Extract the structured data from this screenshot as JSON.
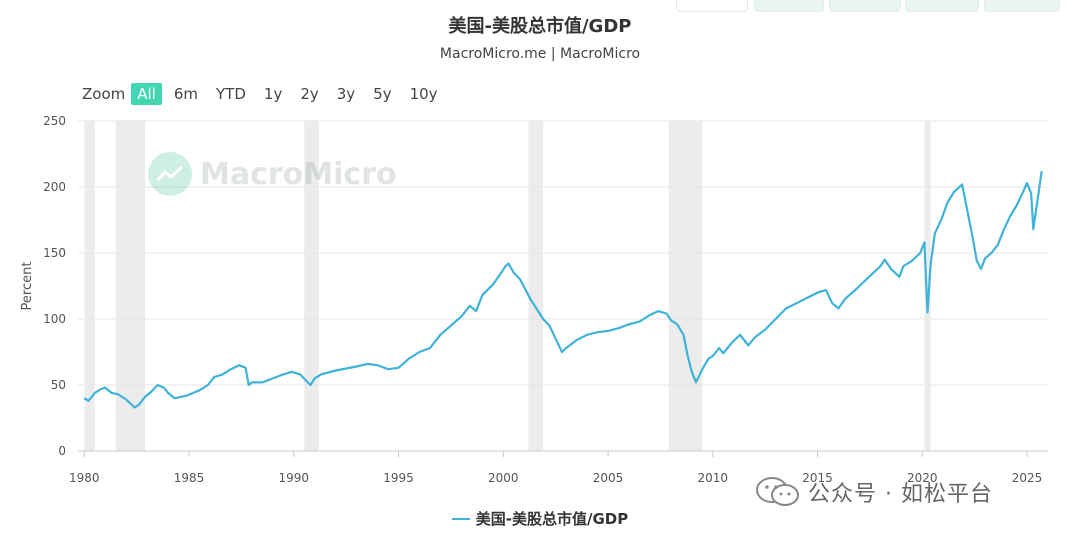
{
  "title": "美国-美股总市值/GDP",
  "subtitle": "MacroMicro.me | MacroMicro",
  "range_selector": {
    "zoom_label": "Zoom",
    "buttons": [
      "All",
      "6m",
      "YTD",
      "1y",
      "2y",
      "3y",
      "5y",
      "10y"
    ],
    "active": "All"
  },
  "watermark": "MacroMicro",
  "wechat_label": "公众号 · 如松平台",
  "colors": {
    "series": "#3fb2d8",
    "recession": "#ececec",
    "accent": "#42d6b2",
    "grid": "#e6e6e6"
  },
  "chart_data": {
    "type": "line",
    "title": "美国-美股总市值/GDP",
    "subtitle": "MacroMicro.me | MacroMicro",
    "ylabel": "Percent",
    "xlabel": "",
    "xlim": [
      1979.7,
      2026.0
    ],
    "ylim": [
      0,
      250
    ],
    "yticks": [
      0,
      50,
      100,
      150,
      200,
      250
    ],
    "xticks": [
      1980,
      1985,
      1990,
      1995,
      2000,
      2005,
      2010,
      2015,
      2020,
      2025
    ],
    "grid": true,
    "legend": "bottom-center",
    "recessions": [
      [
        1980.0,
        1980.5
      ],
      [
        1981.5,
        1982.9
      ],
      [
        1990.5,
        1991.2
      ],
      [
        2001.2,
        2001.9
      ],
      [
        2007.9,
        2009.5
      ],
      [
        2020.1,
        2020.4
      ]
    ],
    "series": [
      {
        "name": "美国-美股总市值/GDP",
        "x": [
          1980.0,
          1980.2,
          1980.5,
          1980.8,
          1981.0,
          1981.3,
          1981.6,
          1982.0,
          1982.4,
          1982.6,
          1982.9,
          1983.2,
          1983.5,
          1983.8,
          1984.0,
          1984.3,
          1984.6,
          1984.9,
          1985.2,
          1985.5,
          1985.9,
          1986.2,
          1986.6,
          1987.0,
          1987.4,
          1987.7,
          1987.85,
          1988.0,
          1988.5,
          1989.0,
          1989.5,
          1989.9,
          1990.3,
          1990.6,
          1990.8,
          1991.0,
          1991.3,
          1992.0,
          1993.0,
          1993.5,
          1994.0,
          1994.5,
          1995.0,
          1995.5,
          1996.0,
          1996.5,
          1997.0,
          1997.5,
          1998.0,
          1998.4,
          1998.7,
          1999.0,
          1999.5,
          1999.9,
          2000.1,
          2000.25,
          2000.5,
          2000.8,
          2001.0,
          2001.3,
          2001.7,
          2001.9,
          2002.2,
          2002.5,
          2002.8,
          2003.0,
          2003.5,
          2004.0,
          2004.5,
          2005.0,
          2005.5,
          2006.0,
          2006.5,
          2007.0,
          2007.4,
          2007.8,
          2008.0,
          2008.3,
          2008.6,
          2008.8,
          2009.0,
          2009.2,
          2009.5,
          2009.8,
          2010.0,
          2010.3,
          2010.5,
          2010.9,
          2011.3,
          2011.7,
          2012.0,
          2012.5,
          2013.0,
          2013.5,
          2014.0,
          2014.5,
          2015.0,
          2015.4,
          2015.7,
          2016.0,
          2016.3,
          2016.8,
          2017.2,
          2017.6,
          2018.0,
          2018.2,
          2018.5,
          2018.9,
          2019.1,
          2019.5,
          2019.9,
          2020.1,
          2020.25,
          2020.4,
          2020.6,
          2020.9,
          2021.2,
          2021.5,
          2021.9,
          2022.1,
          2022.4,
          2022.6,
          2022.8,
          2023.0,
          2023.3,
          2023.6,
          2023.9,
          2024.2,
          2024.5,
          2024.8,
          2025.0,
          2025.2,
          2025.3,
          2025.5,
          2025.7
        ],
        "values": [
          40,
          38,
          44,
          47,
          48,
          44,
          43,
          39,
          33,
          35,
          41,
          45,
          50,
          48,
          44,
          40,
          41,
          42,
          44,
          46,
          50,
          56,
          58,
          62,
          65,
          63,
          50,
          52,
          52,
          55,
          58,
          60,
          58,
          53,
          50,
          55,
          58,
          61,
          64,
          66,
          65,
          62,
          63,
          70,
          75,
          78,
          88,
          95,
          102,
          110,
          106,
          118,
          126,
          135,
          140,
          142,
          135,
          130,
          124,
          115,
          105,
          100,
          95,
          85,
          75,
          78,
          84,
          88,
          90,
          91,
          93,
          96,
          98,
          103,
          106,
          104,
          99,
          96,
          88,
          72,
          60,
          52,
          62,
          70,
          72,
          78,
          74,
          82,
          88,
          80,
          86,
          92,
          100,
          108,
          112,
          116,
          120,
          122,
          112,
          108,
          115,
          122,
          128,
          134,
          140,
          145,
          138,
          132,
          140,
          144,
          150,
          158,
          105,
          142,
          165,
          175,
          188,
          196,
          202,
          186,
          162,
          144,
          138,
          146,
          150,
          156,
          168,
          178,
          186,
          196,
          203,
          195,
          168,
          190,
          212
        ]
      }
    ]
  }
}
